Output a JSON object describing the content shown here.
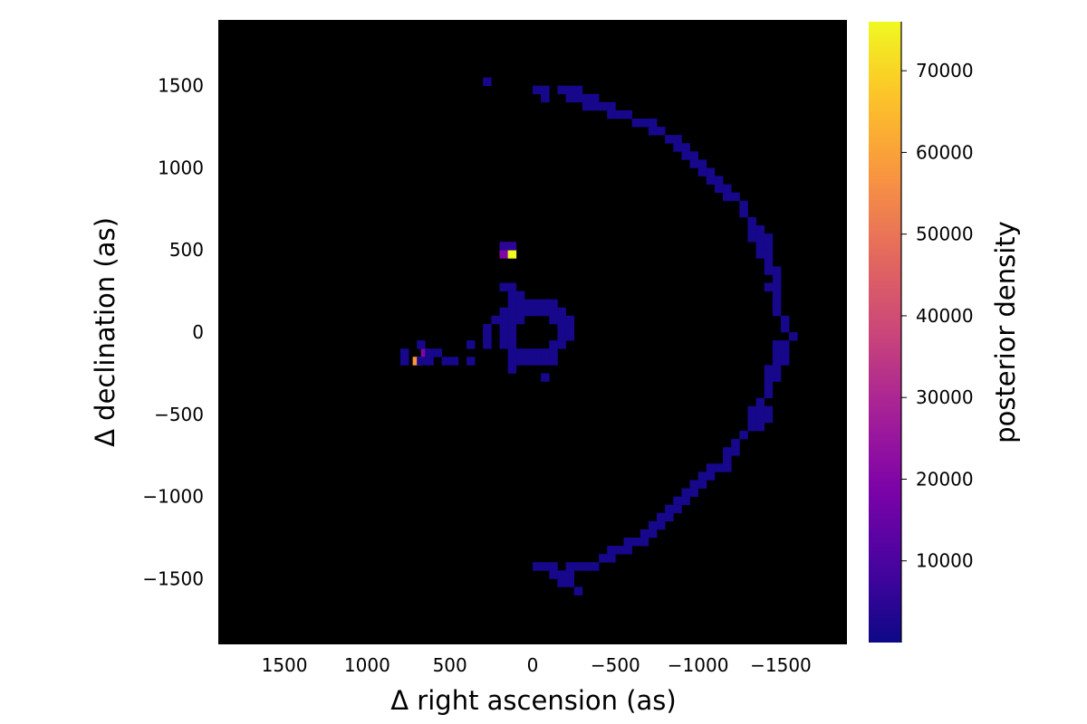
{
  "chart_data": {
    "type": "heatmap",
    "title": "",
    "xlabel": "Δ right ascension (as)",
    "ylabel": "Δ declination (as)",
    "colorbar_label": "posterior density",
    "x_reversed": true,
    "xlim": [
      1900,
      -1900
    ],
    "ylim": [
      -1900,
      1900
    ],
    "x_ticks": [
      1500,
      1000,
      500,
      0,
      -500,
      -1000,
      -1500
    ],
    "x_tick_labels": [
      "1500",
      "1000",
      "500",
      "0",
      "−500",
      "−1000",
      "−1500"
    ],
    "y_ticks": [
      1500,
      1000,
      500,
      0,
      -500,
      -1000,
      -1500
    ],
    "y_tick_labels": [
      "1500",
      "1000",
      "500",
      "0",
      "−500",
      "−1000",
      "−1500"
    ],
    "colorbar_range": [
      0,
      76000
    ],
    "colorbar_ticks": [
      10000,
      20000,
      30000,
      40000,
      50000,
      60000,
      70000
    ],
    "colorbar_tick_labels": [
      "10000",
      "20000",
      "30000",
      "40000",
      "50000",
      "60000",
      "70000"
    ],
    "colormap": "plasma",
    "background_color": "#000000",
    "grid": false,
    "legend": "colorbar-right",
    "bin_size": 50,
    "cells": [
      [
        275,
        1525,
        1500
      ],
      [
        700,
        -175,
        57000
      ],
      [
        650,
        -125,
        20000
      ],
      [
        175,
        475,
        20000
      ],
      [
        125,
        475,
        76000
      ],
      [
        175,
        525,
        5000
      ],
      [
        125,
        525,
        5000
      ],
      [
        -25,
        1475,
        1500
      ],
      [
        -75,
        1475,
        1500
      ],
      [
        -75,
        1425,
        1500
      ],
      [
        -175,
        1475,
        1500
      ],
      [
        -225,
        1475,
        1500
      ],
      [
        -275,
        1475,
        1500
      ],
      [
        -275,
        1425,
        1500
      ],
      [
        -225,
        1425,
        1500
      ],
      [
        -325,
        1425,
        1500
      ],
      [
        -375,
        1425,
        1500
      ],
      [
        -325,
        1375,
        1500
      ],
      [
        -375,
        1375,
        1500
      ],
      [
        -425,
        1375,
        1500
      ],
      [
        -475,
        1375,
        1500
      ],
      [
        -475,
        1325,
        1500
      ],
      [
        -525,
        1325,
        1500
      ],
      [
        -575,
        1325,
        1500
      ],
      [
        -625,
        1275,
        1500
      ],
      [
        -675,
        1275,
        1500
      ],
      [
        -725,
        1275,
        1500
      ],
      [
        -725,
        1225,
        1500
      ],
      [
        -775,
        1225,
        1500
      ],
      [
        -825,
        1175,
        1500
      ],
      [
        -875,
        1175,
        1500
      ],
      [
        -875,
        1125,
        1500
      ],
      [
        -925,
        1125,
        1500
      ],
      [
        -925,
        1075,
        1500
      ],
      [
        -975,
        1075,
        1500
      ],
      [
        -975,
        1025,
        1500
      ],
      [
        -1025,
        1025,
        1500
      ],
      [
        -1025,
        975,
        1500
      ],
      [
        -1075,
        975,
        1500
      ],
      [
        -1075,
        925,
        1500
      ],
      [
        -1125,
        925,
        1500
      ],
      [
        -1125,
        875,
        1500
      ],
      [
        -1175,
        875,
        1500
      ],
      [
        -1175,
        825,
        1500
      ],
      [
        -1225,
        825,
        1500
      ],
      [
        -1275,
        775,
        1500
      ],
      [
        -1275,
        725,
        1500
      ],
      [
        -1325,
        675,
        1500
      ],
      [
        -1325,
        625,
        1500
      ],
      [
        -1375,
        625,
        1500
      ],
      [
        -1375,
        575,
        1500
      ],
      [
        -1425,
        575,
        1500
      ],
      [
        -1325,
        575,
        1500
      ],
      [
        -1375,
        525,
        1500
      ],
      [
        -1425,
        525,
        1500
      ],
      [
        -1425,
        475,
        1500
      ],
      [
        -1375,
        475,
        1500
      ],
      [
        -1425,
        425,
        1500
      ],
      [
        -1425,
        375,
        1500
      ],
      [
        -1475,
        375,
        1500
      ],
      [
        -1475,
        325,
        1500
      ],
      [
        -1425,
        275,
        1500
      ],
      [
        -1475,
        275,
        1500
      ],
      [
        -1475,
        225,
        1500
      ],
      [
        -1475,
        175,
        1500
      ],
      [
        -1475,
        125,
        1500
      ],
      [
        -1525,
        75,
        1500
      ],
      [
        -1525,
        25,
        1500
      ],
      [
        -1575,
        -25,
        1500
      ],
      [
        -1525,
        -75,
        1500
      ],
      [
        -1475,
        -75,
        1500
      ],
      [
        -1525,
        -125,
        1500
      ],
      [
        -1475,
        -125,
        1500
      ],
      [
        -1525,
        -175,
        1500
      ],
      [
        -1475,
        -175,
        1500
      ],
      [
        -1475,
        -225,
        1500
      ],
      [
        -1425,
        -225,
        1500
      ],
      [
        -1475,
        -275,
        1500
      ],
      [
        -1425,
        -275,
        1500
      ],
      [
        -1425,
        -325,
        1500
      ],
      [
        -1425,
        -375,
        1500
      ],
      [
        -1375,
        -425,
        1500
      ],
      [
        -1375,
        -475,
        1500
      ],
      [
        -1325,
        -475,
        1500
      ],
      [
        -1425,
        -475,
        1500
      ],
      [
        -1325,
        -525,
        1500
      ],
      [
        -1375,
        -525,
        1500
      ],
      [
        -1425,
        -525,
        1500
      ],
      [
        -1325,
        -575,
        1500
      ],
      [
        -1375,
        -575,
        1500
      ],
      [
        -1275,
        -625,
        1500
      ],
      [
        -1225,
        -675,
        1500
      ],
      [
        -1225,
        -725,
        1500
      ],
      [
        -1175,
        -725,
        1500
      ],
      [
        -1175,
        -775,
        1500
      ],
      [
        -1125,
        -825,
        1500
      ],
      [
        -1175,
        -825,
        1500
      ],
      [
        -1075,
        -825,
        1500
      ],
      [
        -1075,
        -875,
        1500
      ],
      [
        -1025,
        -875,
        1500
      ],
      [
        -1025,
        -925,
        1500
      ],
      [
        -975,
        -925,
        1500
      ],
      [
        -975,
        -975,
        1500
      ],
      [
        -925,
        -975,
        1500
      ],
      [
        -925,
        -1025,
        1500
      ],
      [
        -875,
        -1025,
        1500
      ],
      [
        -875,
        -1075,
        1500
      ],
      [
        -825,
        -1075,
        1500
      ],
      [
        -825,
        -1125,
        1500
      ],
      [
        -775,
        -1125,
        1500
      ],
      [
        -775,
        -1175,
        1500
      ],
      [
        -725,
        -1175,
        1500
      ],
      [
        -725,
        -1225,
        1500
      ],
      [
        -675,
        -1225,
        1500
      ],
      [
        -675,
        -1275,
        1500
      ],
      [
        -625,
        -1275,
        1500
      ],
      [
        -575,
        -1275,
        1500
      ],
      [
        -575,
        -1325,
        1500
      ],
      [
        -525,
        -1325,
        1500
      ],
      [
        -475,
        -1325,
        1500
      ],
      [
        -475,
        -1375,
        1500
      ],
      [
        -425,
        -1375,
        1500
      ],
      [
        -375,
        -1425,
        1500
      ],
      [
        -325,
        -1425,
        1500
      ],
      [
        -275,
        -1425,
        1500
      ],
      [
        -225,
        -1425,
        1500
      ],
      [
        -225,
        -1475,
        1500
      ],
      [
        -175,
        -1475,
        1500
      ],
      [
        -125,
        -1475,
        1500
      ],
      [
        -75,
        -1425,
        1500
      ],
      [
        -25,
        -1425,
        1500
      ],
      [
        -125,
        -1425,
        1500
      ],
      [
        -175,
        -1525,
        1500
      ],
      [
        -225,
        -1525,
        1500
      ],
      [
        -275,
        -1575,
        1500
      ],
      [
        375,
        -75,
        1500
      ],
      [
        375,
        -175,
        1500
      ],
      [
        475,
        -175,
        1500
      ],
      [
        525,
        -175,
        1500
      ],
      [
        575,
        -125,
        1500
      ],
      [
        625,
        -125,
        1500
      ],
      [
        675,
        -175,
        1500
      ],
      [
        775,
        -175,
        1500
      ],
      [
        775,
        -125,
        1500
      ],
      [
        675,
        -75,
        1500
      ],
      [
        625,
        -175,
        1500
      ],
      [
        75,
        175,
        1500
      ],
      [
        125,
        225,
        1500
      ],
      [
        75,
        225,
        1500
      ],
      [
        125,
        175,
        1500
      ],
      [
        25,
        175,
        1500
      ],
      [
        -25,
        175,
        1500
      ],
      [
        -75,
        175,
        1500
      ],
      [
        -125,
        175,
        1500
      ],
      [
        175,
        125,
        1500
      ],
      [
        125,
        125,
        1500
      ],
      [
        75,
        125,
        1500
      ],
      [
        25,
        125,
        1500
      ],
      [
        -25,
        125,
        1500
      ],
      [
        -75,
        125,
        1500
      ],
      [
        -125,
        125,
        1500
      ],
      [
        -175,
        125,
        1500
      ],
      [
        225,
        75,
        1500
      ],
      [
        175,
        75,
        1500
      ],
      [
        125,
        75,
        1500
      ],
      [
        75,
        75,
        1500
      ],
      [
        -125,
        75,
        1500
      ],
      [
        -175,
        75,
        1500
      ],
      [
        -225,
        75,
        1500
      ],
      [
        275,
        25,
        1500
      ],
      [
        175,
        25,
        1500
      ],
      [
        125,
        25,
        1500
      ],
      [
        -175,
        25,
        1500
      ],
      [
        -225,
        25,
        1500
      ],
      [
        175,
        -25,
        1500
      ],
      [
        125,
        -25,
        1500
      ],
      [
        -175,
        -25,
        1500
      ],
      [
        -225,
        -25,
        1500
      ],
      [
        275,
        -25,
        1500
      ],
      [
        275,
        -75,
        1500
      ],
      [
        175,
        -75,
        1500
      ],
      [
        125,
        -75,
        1500
      ],
      [
        -175,
        -75,
        1500
      ],
      [
        -125,
        -75,
        1500
      ],
      [
        125,
        -125,
        1500
      ],
      [
        75,
        -125,
        1500
      ],
      [
        25,
        -125,
        1500
      ],
      [
        -25,
        -125,
        1500
      ],
      [
        -75,
        -125,
        1500
      ],
      [
        -125,
        -125,
        1500
      ],
      [
        75,
        -175,
        1500
      ],
      [
        25,
        -175,
        1500
      ],
      [
        -25,
        -175,
        1500
      ],
      [
        -75,
        -175,
        1500
      ],
      [
        -125,
        -175,
        1500
      ],
      [
        125,
        -175,
        1500
      ],
      [
        125,
        -225,
        1500
      ],
      [
        -75,
        -275,
        1500
      ],
      [
        175,
        275,
        1500
      ],
      [
        125,
        275,
        1500
      ]
    ]
  }
}
